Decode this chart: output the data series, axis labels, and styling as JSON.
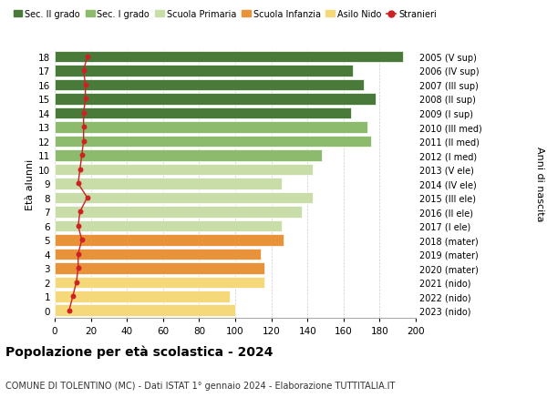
{
  "ages": [
    0,
    1,
    2,
    3,
    4,
    5,
    6,
    7,
    8,
    9,
    10,
    11,
    12,
    13,
    14,
    15,
    16,
    17,
    18
  ],
  "years_labels": [
    "2023 (nido)",
    "2022 (nido)",
    "2021 (nido)",
    "2020 (mater)",
    "2019 (mater)",
    "2018 (mater)",
    "2017 (I ele)",
    "2016 (II ele)",
    "2015 (III ele)",
    "2014 (IV ele)",
    "2013 (V ele)",
    "2012 (I med)",
    "2011 (II med)",
    "2010 (III med)",
    "2009 (I sup)",
    "2008 (II sup)",
    "2007 (III sup)",
    "2006 (IV sup)",
    "2005 (V sup)"
  ],
  "bar_values": [
    100,
    97,
    116,
    116,
    114,
    127,
    126,
    137,
    143,
    126,
    143,
    148,
    175,
    173,
    164,
    178,
    171,
    165,
    193
  ],
  "stranieri_values": [
    8,
    10,
    12,
    13,
    13,
    15,
    13,
    14,
    18,
    13,
    14,
    15,
    16,
    16,
    16,
    17,
    17,
    16,
    18
  ],
  "bar_colors": [
    "#f5d87a",
    "#f5d87a",
    "#f5d87a",
    "#e8923a",
    "#e8923a",
    "#e8923a",
    "#c8dda8",
    "#c8dda8",
    "#c8dda8",
    "#c8dda8",
    "#c8dda8",
    "#8dbb6e",
    "#8dbb6e",
    "#8dbb6e",
    "#4a7a3a",
    "#4a7a3a",
    "#4a7a3a",
    "#4a7a3a",
    "#4a7a3a"
  ],
  "legend_labels": [
    "Sec. II grado",
    "Sec. I grado",
    "Scuola Primaria",
    "Scuola Infanzia",
    "Asilo Nido",
    "Stranieri"
  ],
  "legend_colors": [
    "#4a7a3a",
    "#8dbb6e",
    "#c8dda8",
    "#e8923a",
    "#f5d87a",
    "#cc2222"
  ],
  "ylabel_left": "Età alunni",
  "ylabel_right": "Anni di nascita",
  "title": "Popolazione per età scolastica - 2024",
  "subtitle": "COMUNE DI TOLENTINO (MC) - Dati ISTAT 1° gennaio 2024 - Elaborazione TUTTITALIA.IT",
  "xlim": [
    0,
    200
  ],
  "xticks": [
    0,
    20,
    40,
    60,
    80,
    100,
    120,
    140,
    160,
    180,
    200
  ],
  "background_color": "#ffffff",
  "grid_color": "#cccccc",
  "stranieri_color": "#cc2222",
  "bar_height": 0.82
}
